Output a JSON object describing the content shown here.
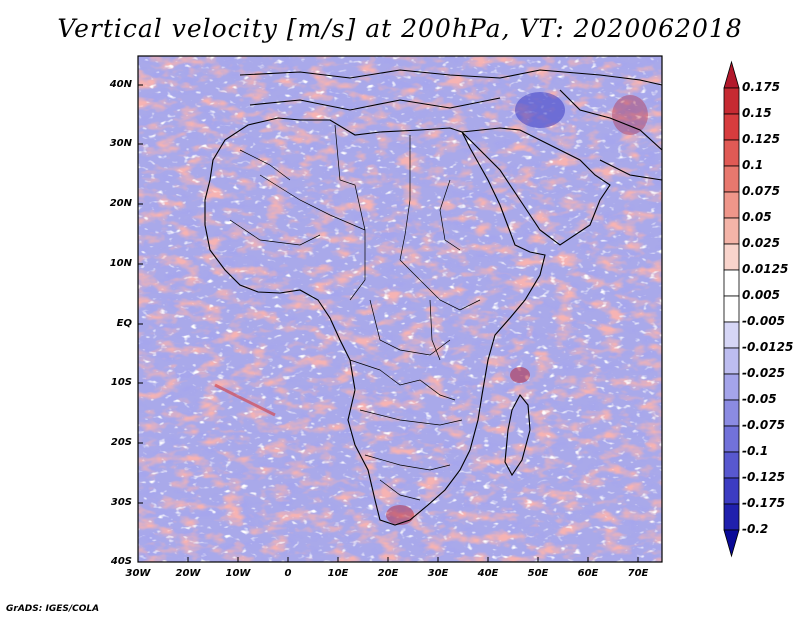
{
  "title": "Vertical velocity [m/s] at 200hPa, VT: 2020062018",
  "lat_labels": [
    "40N",
    "30N",
    "20N",
    "10N",
    "EQ",
    "10S",
    "20S",
    "30S",
    "40S"
  ],
  "lon_labels": [
    "30W",
    "20W",
    "10W",
    "0",
    "10E",
    "20E",
    "30E",
    "40E",
    "50E",
    "60E",
    "70E"
  ],
  "colorbar": {
    "levels": [
      "0.175",
      "0.15",
      "0.125",
      "0.1",
      "0.075",
      "0.05",
      "0.025",
      "0.0125",
      "0.005",
      "-0.005",
      "-0.0125",
      "-0.025",
      "-0.05",
      "-0.075",
      "-0.1",
      "-0.125",
      "-0.175",
      "-0.2"
    ],
    "colors": [
      "#b2182b",
      "#c62a32",
      "#d73c3e",
      "#e05a55",
      "#e8786e",
      "#ef968a",
      "#f4b4a8",
      "#f9d4cc",
      "#ffffff",
      "#ffffff",
      "#d6d6f6",
      "#bdbdf0",
      "#a4a4ea",
      "#8b8be2",
      "#7272da",
      "#5858cf",
      "#3c3cc2",
      "#2020ad",
      "#0a0a98"
    ]
  },
  "credit": "GrADS: IGES/COLA"
}
